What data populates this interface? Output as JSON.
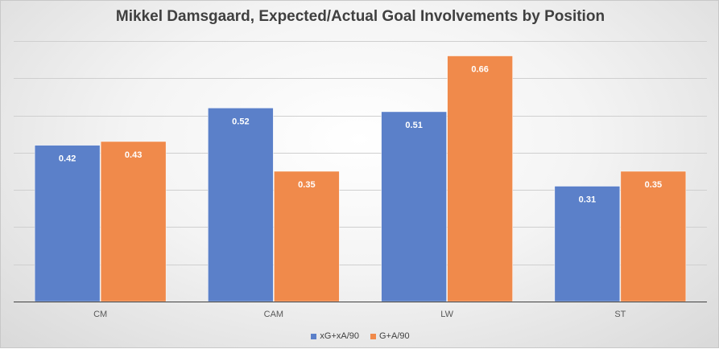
{
  "chart_data": {
    "type": "bar",
    "title": "Mikkel Damsgaard, Expected/Actual Goal Involvements by Position",
    "categories": [
      "CM",
      "CAM",
      "LW",
      "ST"
    ],
    "series": [
      {
        "name": "xG+xA/90",
        "values": [
          0.42,
          0.52,
          0.51,
          0.31
        ],
        "color": "#5B80C9"
      },
      {
        "name": "G+A/90",
        "values": [
          0.43,
          0.35,
          0.66,
          0.35
        ],
        "color": "#F08A4B"
      }
    ],
    "ylim": [
      0,
      0.7
    ],
    "gridlines": true,
    "data_labels": [
      "0.42",
      "0.52",
      "0.51",
      "0.31",
      "0.43",
      "0.35",
      "0.66",
      "0.35"
    ],
    "legend_position": "bottom",
    "xlabel": "",
    "ylabel": ""
  }
}
